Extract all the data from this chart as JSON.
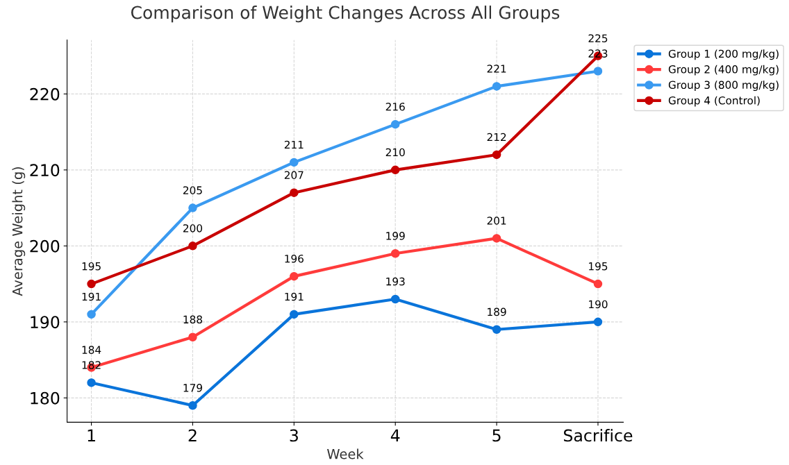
{
  "chart_data": {
    "type": "line",
    "title": "Comparison of Weight Changes Across All Groups",
    "xlabel": "Week",
    "ylabel": "Average Weight (g)",
    "categories": [
      "1",
      "2",
      "3",
      "4",
      "5",
      "Sacrifice"
    ],
    "series": [
      {
        "name": "Group 1 (200 mg/kg)",
        "color": "#0a74da",
        "values": [
          182,
          179,
          191,
          193,
          189,
          190
        ]
      },
      {
        "name": "Group 2 (400 mg/kg)",
        "color": "#ff3b3b",
        "values": [
          184,
          188,
          196,
          199,
          201,
          195
        ]
      },
      {
        "name": "Group 3 (800 mg/kg)",
        "color": "#3a9af0",
        "values": [
          191,
          205,
          211,
          216,
          221,
          223
        ]
      },
      {
        "name": "Group 4 (Control)",
        "color": "#c80000",
        "values": [
          195,
          200,
          207,
          210,
          212,
          225
        ]
      }
    ],
    "ylim": [
      176.8,
      227.1
    ],
    "yticks": [
      180,
      190,
      200,
      210,
      220
    ],
    "grid": true,
    "legend": "top right",
    "marker": "circle",
    "line_style": "solid",
    "data_labels": true
  }
}
